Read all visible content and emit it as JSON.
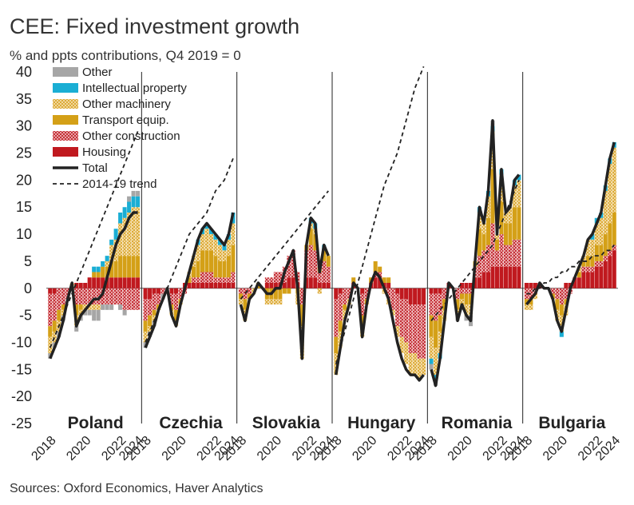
{
  "title": "CEE: Fixed investment growth",
  "subtitle": "% and ppts contributions, Q4 2019 = 0",
  "source": "Sources: Oxford Economics, Haver Analytics",
  "colors": {
    "Other": "#a6a6a6",
    "Intellectual property": "#1aaed4",
    "Other machinery": "#e3b64a",
    "Transport equip.": "#d4a017",
    "Other construction": "#c0232b",
    "Housing": "#c0191f",
    "Total": "#222222",
    "2014-19 trend": "#222222"
  },
  "chart_data": {
    "type": "bar",
    "stacked": true,
    "ylim": [
      -25,
      40
    ],
    "yticks": [
      -25,
      -20,
      -15,
      -10,
      -5,
      0,
      5,
      10,
      15,
      20,
      25,
      30,
      35,
      40
    ],
    "xticks": [
      "2018",
      "2020",
      "2022",
      "2024"
    ],
    "legend": {
      "position": "top-left",
      "entries": [
        "Other",
        "Intellectual property",
        "Other machinery",
        "Transport equip.",
        "Other construction",
        "Housing",
        "Total",
        "2014-19 trend"
      ]
    },
    "panels": [
      {
        "name": "Poland",
        "start_year": 2018,
        "total": [
          -13,
          -11,
          -9,
          -6,
          -2,
          1,
          -7,
          -5,
          -4,
          -3,
          -2,
          -2,
          -1,
          2,
          5,
          8,
          10,
          11,
          13,
          14,
          14
        ],
        "trend": [
          -11,
          -9,
          -7,
          -5,
          -3,
          -1,
          1,
          3,
          5,
          7,
          9,
          11,
          13,
          15,
          17,
          19,
          21,
          23,
          25,
          27,
          29
        ],
        "components": {
          "Housing": [
            -1,
            -1,
            0,
            0,
            0,
            0,
            1,
            1,
            1,
            2,
            2,
            2,
            2,
            2,
            2,
            2,
            2,
            2,
            2,
            2,
            2
          ],
          "Other construction": [
            -6,
            -5,
            -4,
            -3,
            -2,
            0,
            -3,
            -3,
            -3,
            -3,
            -3,
            -3,
            -3,
            -3,
            -3,
            -3,
            -3,
            -4,
            -4,
            -4,
            -4
          ],
          "Transport equip.": [
            -2,
            -2,
            -2,
            -1,
            0,
            0,
            -2,
            -1,
            0,
            0,
            1,
            1,
            2,
            2,
            3,
            3,
            4,
            4,
            4,
            4,
            4
          ],
          "Other machinery": [
            -3,
            -2,
            -2,
            -1,
            0,
            1,
            -2,
            -1,
            -1,
            -1,
            -1,
            -1,
            0,
            1,
            3,
            4,
            6,
            7,
            8,
            9,
            9
          ],
          "Intellectual property": [
            0,
            0,
            0,
            0,
            0,
            0,
            0,
            0,
            0,
            0,
            1,
            1,
            1,
            1,
            1,
            2,
            2,
            2,
            2,
            2,
            2
          ],
          "Other": [
            -1,
            -1,
            -1,
            -1,
            0,
            0,
            -1,
            -1,
            -1,
            -1,
            -2,
            -2,
            -1,
            -1,
            -1,
            0,
            -1,
            -1,
            1,
            1,
            1
          ]
        }
      },
      {
        "name": "Czechia",
        "start_year": 2018,
        "total": [
          -11,
          -9,
          -7,
          -4,
          -2,
          0,
          -5,
          -7,
          -3,
          0,
          3,
          6,
          9,
          11,
          12,
          11,
          10,
          9,
          8,
          10,
          14
        ],
        "trend": [
          -10,
          -8,
          -6,
          -4,
          -2,
          0,
          2,
          4,
          6,
          8,
          10,
          11,
          12,
          13,
          14,
          16,
          18,
          19,
          20,
          22,
          24
        ],
        "components": {
          "Housing": [
            -2,
            -2,
            -1,
            -1,
            0,
            0,
            -1,
            -1,
            0,
            1,
            1,
            1,
            1,
            1,
            1,
            1,
            1,
            1,
            1,
            1,
            1
          ],
          "Other construction": [
            -4,
            -3,
            -3,
            -2,
            -1,
            0,
            -2,
            -3,
            -2,
            -1,
            0,
            1,
            1,
            2,
            2,
            2,
            1,
            1,
            1,
            1,
            2
          ],
          "Transport equip.": [
            -2,
            -2,
            -1,
            -1,
            0,
            0,
            -1,
            -2,
            -1,
            0,
            1,
            2,
            3,
            4,
            4,
            4,
            4,
            3,
            3,
            4,
            5
          ],
          "Other machinery": [
            -2,
            -1,
            -1,
            0,
            0,
            0,
            -1,
            -1,
            0,
            0,
            1,
            2,
            3,
            3,
            4,
            3,
            3,
            3,
            2,
            3,
            4
          ],
          "Intellectual property": [
            0,
            0,
            0,
            0,
            0,
            0,
            0,
            0,
            0,
            0,
            0,
            0,
            1,
            1,
            1,
            1,
            1,
            1,
            1,
            1,
            2
          ],
          "Other": [
            -1,
            -1,
            -1,
            0,
            -1,
            0,
            0,
            0,
            0,
            0,
            0,
            0,
            0,
            0,
            0,
            0,
            0,
            0,
            0,
            0,
            0
          ]
        }
      },
      {
        "name": "Slovakia",
        "start_year": 2018,
        "total": [
          -3,
          -6,
          -2,
          -1,
          1,
          0,
          -1,
          -1,
          0,
          0,
          3,
          5,
          7,
          0,
          -13,
          8,
          13,
          12,
          3,
          8,
          6
        ],
        "trend": [
          -2,
          -1,
          0,
          1,
          2,
          3,
          4,
          5,
          6,
          7,
          8,
          9,
          10,
          11,
          12,
          13,
          14,
          15,
          16,
          17,
          18
        ],
        "components": {
          "Housing": [
            0,
            0,
            0,
            0,
            0,
            0,
            1,
            1,
            1,
            1,
            1,
            2,
            2,
            1,
            0,
            2,
            2,
            2,
            1,
            1,
            1
          ],
          "Other construction": [
            -1,
            -2,
            -1,
            0,
            0,
            0,
            1,
            1,
            2,
            2,
            3,
            4,
            5,
            2,
            -3,
            5,
            6,
            5,
            2,
            4,
            3
          ],
          "Transport equip.": [
            -1,
            -2,
            -1,
            0,
            1,
            0,
            -2,
            -2,
            -2,
            -2,
            -1,
            -1,
            0,
            -1,
            -4,
            1,
            3,
            3,
            1,
            2,
            2
          ],
          "Other machinery": [
            -1,
            -2,
            0,
            -1,
            0,
            0,
            -1,
            -1,
            -1,
            -1,
            0,
            0,
            0,
            -2,
            -6,
            0,
            1,
            1,
            -1,
            0,
            0
          ],
          "Intellectual property": [
            0,
            0,
            0,
            0,
            0,
            0,
            0,
            0,
            0,
            0,
            0,
            0,
            0,
            0,
            0,
            0,
            1,
            1,
            0,
            1,
            0
          ],
          "Other": [
            0,
            0,
            0,
            0,
            0,
            0,
            0,
            0,
            0,
            0,
            0,
            0,
            0,
            0,
            0,
            0,
            0,
            0,
            0,
            0,
            0
          ]
        }
      },
      {
        "name": "Hungary",
        "start_year": 2018,
        "total": [
          -16,
          -11,
          -6,
          -3,
          1,
          0,
          -9,
          -3,
          1,
          3,
          2,
          0,
          -2,
          -6,
          -10,
          -13,
          -15,
          -16,
          -16,
          -17,
          -16
        ],
        "trend": [
          -14,
          -11,
          -8,
          -5,
          -2,
          1,
          4,
          7,
          10,
          13,
          16,
          19,
          21,
          23,
          25,
          28,
          31,
          34,
          37,
          39,
          41
        ],
        "components": {
          "Housing": [
            -2,
            -1,
            0,
            0,
            1,
            0,
            -1,
            0,
            1,
            2,
            2,
            1,
            1,
            0,
            -1,
            -2,
            -2,
            -3,
            -3,
            -3,
            -3
          ],
          "Other construction": [
            -7,
            -5,
            -3,
            -2,
            0,
            0,
            -4,
            -2,
            0,
            1,
            1,
            0,
            -2,
            -4,
            -6,
            -7,
            -8,
            -9,
            -9,
            -10,
            -10
          ],
          "Transport equip.": [
            -3,
            -2,
            -1,
            0,
            1,
            0,
            -2,
            -1,
            1,
            2,
            1,
            1,
            1,
            0,
            0,
            0,
            0,
            0,
            0,
            0,
            0
          ],
          "Other machinery": [
            -4,
            -3,
            -2,
            -1,
            0,
            0,
            -2,
            0,
            0,
            0,
            0,
            -1,
            -1,
            -1,
            -2,
            -3,
            -4,
            -4,
            -4,
            -4,
            -3
          ],
          "Intellectual property": [
            0,
            0,
            0,
            0,
            0,
            0,
            0,
            0,
            0,
            0,
            0,
            0,
            0,
            0,
            0,
            0,
            0,
            0,
            0,
            0,
            0
          ],
          "Other": [
            0,
            0,
            0,
            0,
            0,
            0,
            0,
            0,
            0,
            0,
            0,
            0,
            0,
            0,
            0,
            0,
            0,
            0,
            0,
            0,
            0
          ]
        }
      },
      {
        "name": "Romania",
        "start_year": 2018,
        "total": [
          -15,
          -18,
          -13,
          -6,
          1,
          0,
          -6,
          -3,
          -5,
          -6,
          5,
          15,
          12,
          18,
          31,
          10,
          22,
          14,
          15,
          20,
          21
        ],
        "trend": [
          -6,
          -5,
          -4,
          -3,
          -2,
          -1,
          0,
          1,
          2,
          3,
          4,
          5,
          6,
          7,
          8,
          10,
          12,
          14,
          16,
          18,
          20
        ],
        "components": {
          "Housing": [
            -1,
            -1,
            -1,
            0,
            1,
            0,
            0,
            1,
            1,
            1,
            2,
            2,
            3,
            3,
            4,
            4,
            4,
            4,
            4,
            4,
            4
          ],
          "Other construction": [
            -4,
            -5,
            -4,
            -2,
            0,
            0,
            -2,
            -1,
            -1,
            -1,
            2,
            4,
            4,
            5,
            8,
            3,
            6,
            4,
            4,
            5,
            5
          ],
          "Transport equip.": [
            -4,
            -5,
            -3,
            -2,
            0,
            0,
            -2,
            -1,
            -2,
            -2,
            1,
            5,
            3,
            5,
            10,
            2,
            6,
            4,
            4,
            6,
            6
          ],
          "Other machinery": [
            -4,
            -5,
            -4,
            -2,
            0,
            0,
            -1,
            -1,
            -2,
            -2,
            0,
            3,
            2,
            4,
            7,
            1,
            5,
            2,
            3,
            4,
            5
          ],
          "Intellectual property": [
            -1,
            -1,
            -1,
            0,
            0,
            0,
            0,
            0,
            0,
            0,
            0,
            1,
            0,
            1,
            1,
            0,
            1,
            0,
            0,
            1,
            1
          ],
          "Other": [
            -1,
            -1,
            0,
            0,
            0,
            0,
            -1,
            -1,
            -1,
            -2,
            0,
            0,
            0,
            0,
            1,
            0,
            0,
            0,
            0,
            0,
            0
          ]
        }
      },
      {
        "name": "Bulgaria",
        "start_year": 2018,
        "total": [
          -3,
          -2,
          -1,
          1,
          0,
          0,
          -2,
          -6,
          -8,
          -4,
          0,
          2,
          4,
          6,
          9,
          10,
          12,
          14,
          19,
          24,
          27
        ],
        "trend": [
          -1,
          -1,
          0,
          0,
          1,
          1,
          2,
          2,
          3,
          3,
          4,
          4,
          5,
          5,
          5,
          6,
          6,
          6,
          7,
          7,
          8
        ],
        "components": {
          "Housing": [
            1,
            1,
            1,
            1,
            0,
            0,
            0,
            0,
            0,
            1,
            1,
            2,
            2,
            3,
            3,
            3,
            4,
            4,
            5,
            6,
            7
          ],
          "Other construction": [
            -2,
            -2,
            -1,
            0,
            0,
            0,
            -1,
            -2,
            -3,
            -2,
            -1,
            0,
            0,
            1,
            1,
            1,
            1,
            1,
            1,
            1,
            1
          ],
          "Transport equip.": [
            -1,
            -1,
            0,
            0,
            0,
            0,
            -1,
            -2,
            -2,
            -1,
            0,
            0,
            1,
            1,
            2,
            2,
            3,
            3,
            4,
            5,
            6
          ],
          "Other machinery": [
            -1,
            -1,
            -1,
            0,
            0,
            0,
            0,
            -2,
            -3,
            -2,
            0,
            0,
            1,
            1,
            3,
            3,
            4,
            5,
            8,
            11,
            12
          ],
          "Intellectual property": [
            0,
            0,
            0,
            0,
            0,
            0,
            0,
            0,
            -1,
            0,
            0,
            0,
            0,
            0,
            0,
            1,
            1,
            1,
            1,
            1,
            1
          ],
          "Other": [
            0,
            0,
            0,
            0,
            0,
            0,
            0,
            0,
            0,
            0,
            0,
            0,
            0,
            0,
            0,
            0,
            0,
            0,
            0,
            0,
            0
          ]
        }
      }
    ]
  }
}
